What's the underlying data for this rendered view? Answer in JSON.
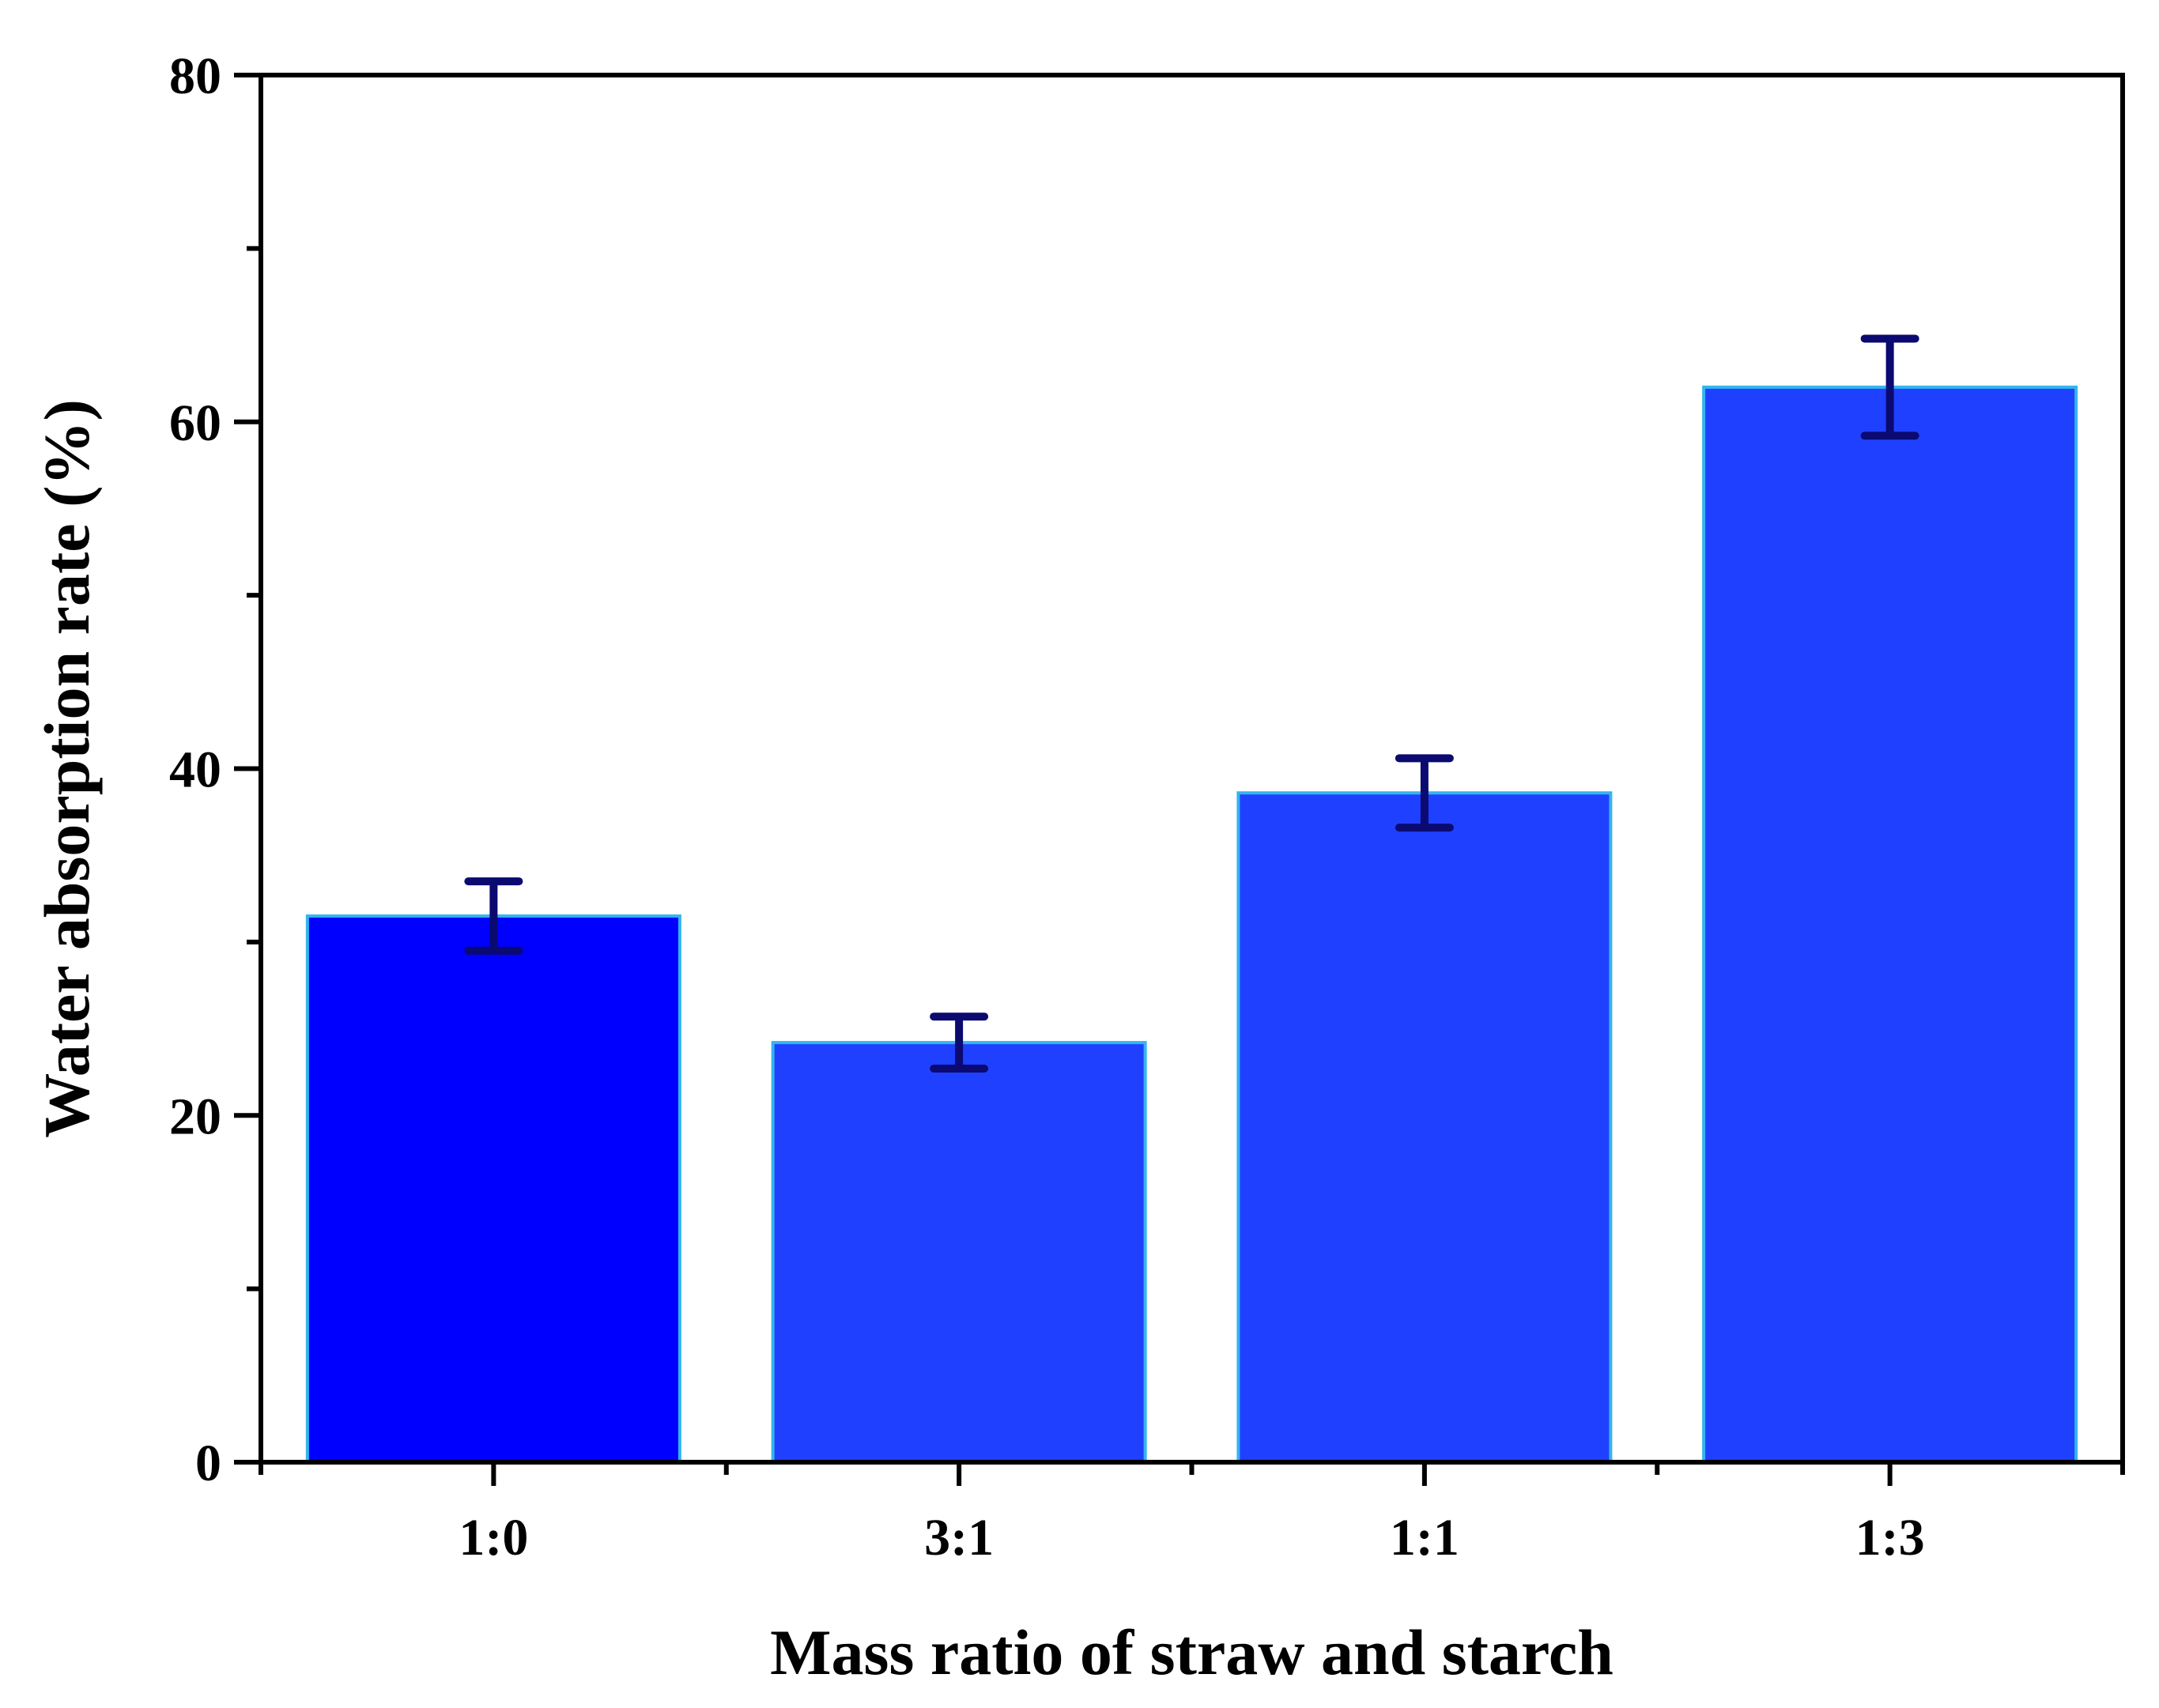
{
  "chart_data": {
    "type": "bar",
    "title": "",
    "xlabel": "Mass ratio of straw and starch",
    "ylabel": "Water absorption rate (%)",
    "categories": [
      "1:0",
      "3:1",
      "1:1",
      "1:3"
    ],
    "values": [
      31.5,
      24.2,
      38.6,
      62.0
    ],
    "errors": [
      2.0,
      1.5,
      2.0,
      2.8
    ],
    "ylim": [
      0,
      80
    ],
    "yticks": [
      0,
      20,
      40,
      60,
      80
    ],
    "grid": false,
    "legend": "none",
    "colors": {
      "bar_first": "#0000ff",
      "bar_default": "#2040ff",
      "bar_edge": "#33b5ee",
      "error_bar": "#0a0a70",
      "axis": "#000000"
    }
  }
}
